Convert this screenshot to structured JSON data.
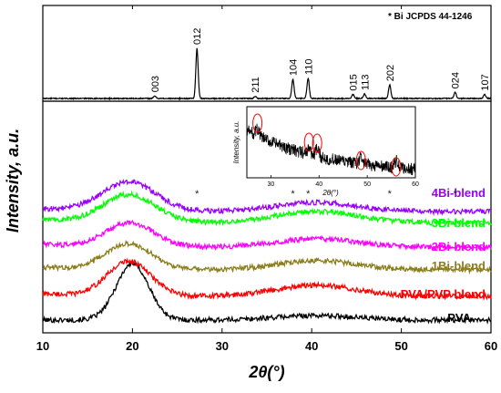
{
  "chart_data": {
    "type": "line",
    "xlabel": "2θ(°)",
    "ylabel": "Intensity, a.u.",
    "xlim": [
      10,
      60
    ],
    "xticks": [
      10,
      20,
      30,
      40,
      50,
      60
    ],
    "reference_label": "* Bi JCPDS 44-1246",
    "reference_pattern": {
      "peaks": [
        {
          "hkl": "003",
          "two_theta": 22.5,
          "intensity": 0.05
        },
        {
          "hkl": "012",
          "two_theta": 27.2,
          "intensity": 1.0
        },
        {
          "hkl": "211",
          "two_theta": 33.7,
          "intensity": 0.04
        },
        {
          "hkl": "104",
          "two_theta": 37.9,
          "intensity": 0.38
        },
        {
          "hkl": "110",
          "two_theta": 39.6,
          "intensity": 0.4
        },
        {
          "hkl": "015",
          "two_theta": 44.6,
          "intensity": 0.08
        },
        {
          "hkl": "113",
          "two_theta": 45.9,
          "intensity": 0.09
        },
        {
          "hkl": "202",
          "two_theta": 48.7,
          "intensity": 0.27
        },
        {
          "hkl": "024",
          "two_theta": 56.0,
          "intensity": 0.12
        },
        {
          "hkl": "107",
          "two_theta": 59.3,
          "intensity": 0.08
        }
      ]
    },
    "series": [
      {
        "name": "PVA",
        "color": "#000000",
        "peak_center": 20.0,
        "peak_height": 0.62,
        "peak_width": 1.8,
        "secondary_center": 40.5,
        "secondary_height": 0.05,
        "stars": []
      },
      {
        "name": "PVA/PVP blend",
        "color": "#ff0000",
        "peak_center": 19.6,
        "peak_height": 0.38,
        "peak_width": 2.4,
        "secondary_center": 40.5,
        "secondary_height": 0.12,
        "stars": []
      },
      {
        "name": "1Bi-blend",
        "color": "#8b7d1a",
        "peak_center": 19.6,
        "peak_height": 0.28,
        "peak_width": 2.6,
        "secondary_center": 40.5,
        "secondary_height": 0.1,
        "stars": []
      },
      {
        "name": "2Bi-blend",
        "color": "#ff00ff",
        "peak_center": 19.7,
        "peak_height": 0.26,
        "peak_width": 2.7,
        "secondary_center": 40.5,
        "secondary_height": 0.09,
        "stars": []
      },
      {
        "name": "3Bi-blend",
        "color": "#00ff00",
        "peak_center": 19.6,
        "peak_height": 0.3,
        "peak_width": 2.9,
        "secondary_center": 40.5,
        "secondary_height": 0.12,
        "stars": []
      },
      {
        "name": "4Bi-blend",
        "color": "#9900ff",
        "peak_center": 19.6,
        "peak_height": 0.32,
        "peak_width": 3.0,
        "secondary_center": 40.5,
        "secondary_height": 0.1,
        "stars": [
          27.2,
          37.9,
          39.6,
          48.7,
          56.0
        ]
      }
    ],
    "inset": {
      "xlabel": "2θ(°)",
      "ylabel": "Intensity, a.u.",
      "xlim": [
        25,
        60
      ],
      "xticks": [
        30,
        40,
        50,
        60
      ],
      "circled_peaks": [
        27.2,
        37.9,
        39.6,
        48.7,
        56.0
      ]
    }
  }
}
